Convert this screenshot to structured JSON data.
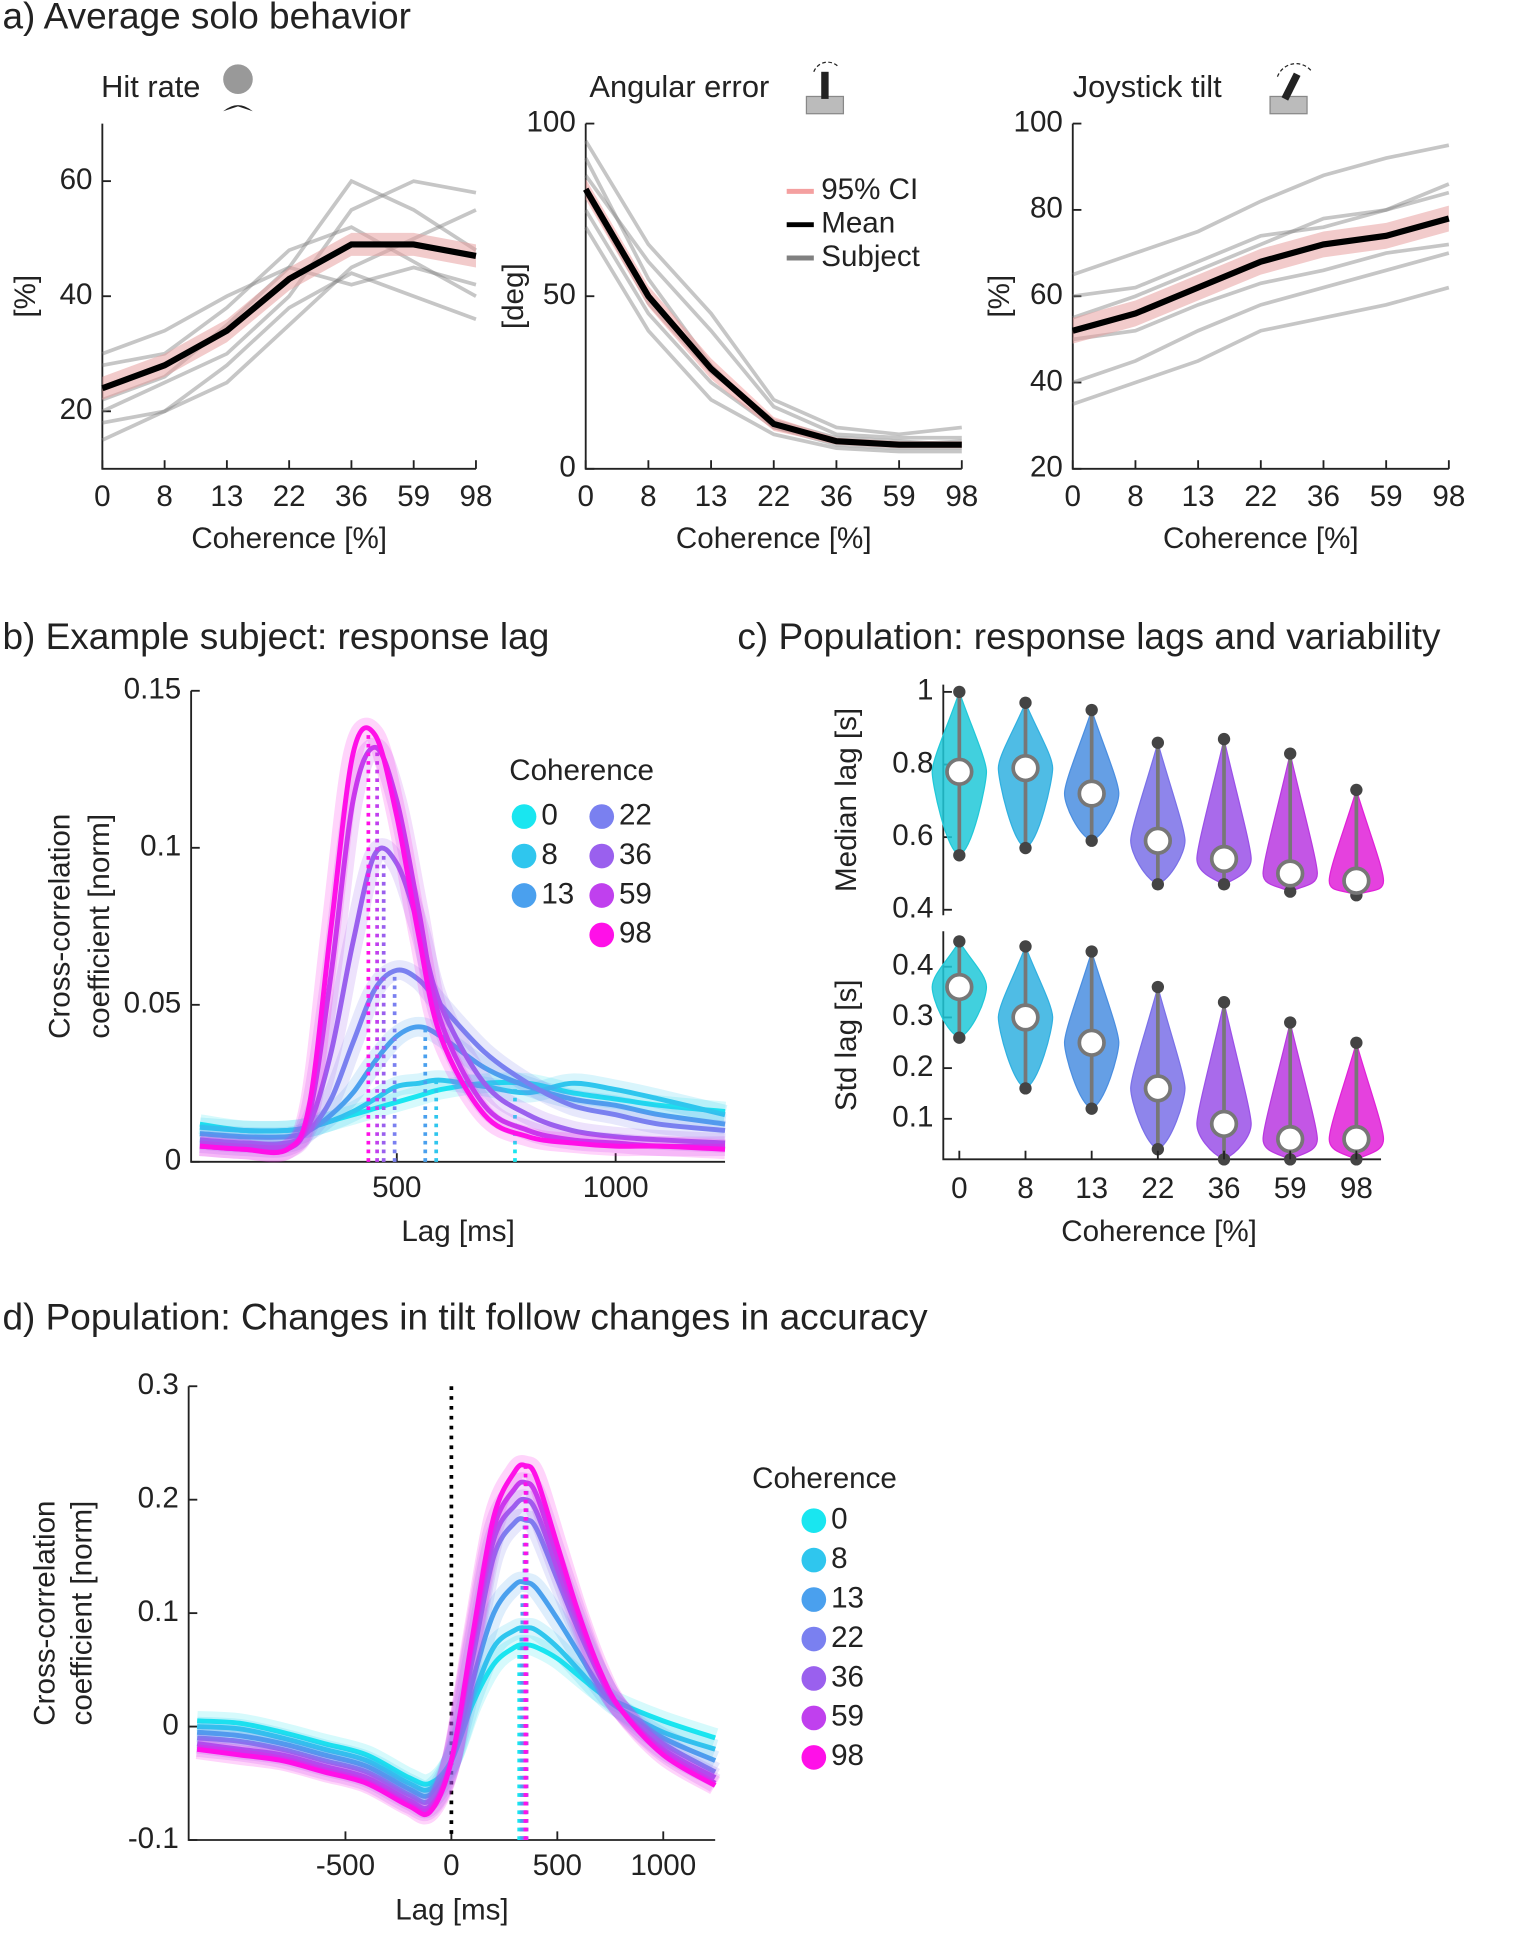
{
  "headings": [
    "a) Average solo behavior",
    "b) Example subject: response lag",
    "c) Population: response lags and variability",
    "d) Population: Changes in tilt follow changes in accuracy"
  ],
  "chart_data": [
    {
      "type": "line",
      "title": "Hit rate",
      "categories": [
        "0",
        "8",
        "13",
        "22",
        "36",
        "59",
        "98"
      ],
      "xlabel": "Coherence [%]",
      "ylabel": "[%]",
      "ylim": [
        10,
        70
      ],
      "yticks": [
        20,
        40,
        60
      ],
      "series": [
        {
          "color": "#e8a0a0",
          "lower": [
            22,
            26,
            32,
            41,
            47,
            47,
            45
          ],
          "upper": [
            26,
            30,
            36,
            45,
            51,
            51,
            49
          ]
        },
        {
          "color": "#000000",
          "values": [
            24,
            28,
            34,
            43,
            49,
            49,
            47
          ]
        },
        {
          "color": "#808080",
          "lines": [
            [
              20,
              25,
              30,
              40,
              55,
              60,
              58
            ],
            [
              28,
              30,
              38,
              48,
              52,
              46,
              40
            ],
            [
              18,
              20,
              25,
              35,
              45,
              50,
              55
            ],
            [
              22,
              26,
              35,
              45,
              60,
              55,
              48
            ],
            [
              30,
              34,
              40,
              45,
              42,
              45,
              42
            ],
            [
              15,
              20,
              28,
              38,
              44,
              40,
              36
            ]
          ]
        }
      ]
    },
    {
      "type": "line",
      "title": "Angular error",
      "categories": [
        "0",
        "8",
        "13",
        "22",
        "36",
        "59",
        "98"
      ],
      "xlabel": "Coherence [%]",
      "ylabel": "[deg]",
      "ylim": [
        0,
        100
      ],
      "yticks": [
        0,
        50,
        100
      ],
      "legend": true,
      "series": [
        {
          "name": "95% CI",
          "color": "#f4a0a0",
          "lower": [
            78,
            47,
            26,
            11,
            7,
            6,
            6
          ],
          "upper": [
            84,
            53,
            32,
            15,
            9,
            8,
            8
          ]
        },
        {
          "name": "Mean",
          "color": "#000000",
          "values": [
            81,
            50,
            29,
            13,
            8,
            7,
            7
          ]
        },
        {
          "name": "Subject",
          "color": "#808080",
          "lines": [
            [
              90,
              55,
              30,
              12,
              8,
              7,
              8
            ],
            [
              75,
              45,
              25,
              12,
              7,
              6,
              6
            ],
            [
              85,
              60,
              40,
              18,
              10,
              9,
              9
            ],
            [
              70,
              40,
              20,
              10,
              6,
              5,
              5
            ],
            [
              95,
              65,
              45,
              20,
              12,
              10,
              12
            ],
            [
              80,
              48,
              28,
              14,
              9,
              8,
              7
            ]
          ]
        }
      ]
    },
    {
      "type": "line",
      "title": "Joystick tilt",
      "categories": [
        "0",
        "8",
        "13",
        "22",
        "36",
        "59",
        "98"
      ],
      "xlabel": "Coherence [%]",
      "ylabel": "[%]",
      "ylim": [
        20,
        100
      ],
      "yticks": [
        20,
        40,
        60,
        80,
        100
      ],
      "series": [
        {
          "color": "#e8a0a0",
          "lower": [
            49,
            53,
            59,
            65,
            69,
            71,
            75
          ],
          "upper": [
            55,
            59,
            65,
            71,
            75,
            77,
            81
          ]
        },
        {
          "color": "#000000",
          "values": [
            52,
            56,
            62,
            68,
            72,
            74,
            78
          ]
        },
        {
          "color": "#808080",
          "lines": [
            [
              40,
              45,
              52,
              58,
              62,
              66,
              70
            ],
            [
              65,
              70,
              75,
              82,
              88,
              92,
              95
            ],
            [
              50,
              52,
              58,
              63,
              66,
              70,
              72
            ],
            [
              55,
              60,
              66,
              72,
              78,
              80,
              84
            ],
            [
              35,
              40,
              45,
              52,
              55,
              58,
              62
            ],
            [
              60,
              62,
              68,
              74,
              76,
              80,
              86
            ]
          ]
        }
      ]
    },
    {
      "type": "line",
      "xlabel": "Lag [ms]",
      "ylabel": [
        "Cross-correlation",
        "coefficient [norm]"
      ],
      "legend_title": "Coherence",
      "xlim": [
        30,
        1250
      ],
      "xticks": [
        500,
        1000
      ],
      "ylim": [
        0,
        0.15
      ],
      "yticks": [
        0,
        0.05,
        0.1,
        0.15
      ],
      "x": [
        50,
        150,
        250,
        300,
        350,
        400,
        450,
        500,
        550,
        600,
        700,
        800,
        900,
        1000,
        1100,
        1250
      ],
      "series": [
        {
          "name": "0",
          "color": "#19e6f0",
          "peak_lag": 770,
          "values": [
            0.012,
            0.01,
            0.01,
            0.011,
            0.013,
            0.015,
            0.017,
            0.019,
            0.021,
            0.023,
            0.025,
            0.025,
            0.022,
            0.02,
            0.018,
            0.016
          ]
        },
        {
          "name": "8",
          "color": "#2fc6ee",
          "peak_lag": 590,
          "values": [
            0.011,
            0.01,
            0.01,
            0.011,
            0.013,
            0.016,
            0.02,
            0.024,
            0.025,
            0.026,
            0.024,
            0.022,
            0.025,
            0.023,
            0.02,
            0.015
          ]
        },
        {
          "name": "13",
          "color": "#4aa0ee",
          "peak_lag": 565,
          "values": [
            0.009,
            0.008,
            0.008,
            0.01,
            0.015,
            0.022,
            0.032,
            0.04,
            0.043,
            0.04,
            0.03,
            0.024,
            0.02,
            0.018,
            0.015,
            0.012
          ]
        },
        {
          "name": "22",
          "color": "#7a80f0",
          "peak_lag": 495,
          "values": [
            0.007,
            0.006,
            0.006,
            0.01,
            0.02,
            0.038,
            0.055,
            0.061,
            0.058,
            0.05,
            0.035,
            0.025,
            0.018,
            0.015,
            0.012,
            0.01
          ]
        },
        {
          "name": "36",
          "color": "#9a60ee",
          "peak_lag": 470,
          "values": [
            0.006,
            0.005,
            0.005,
            0.012,
            0.035,
            0.07,
            0.098,
            0.095,
            0.075,
            0.05,
            0.025,
            0.015,
            0.01,
            0.008,
            0.007,
            0.006
          ]
        },
        {
          "name": "59",
          "color": "#c040ee",
          "peak_lag": 455,
          "values": [
            0.005,
            0.004,
            0.004,
            0.015,
            0.06,
            0.115,
            0.132,
            0.115,
            0.08,
            0.045,
            0.018,
            0.01,
            0.007,
            0.006,
            0.005,
            0.005
          ]
        },
        {
          "name": "98",
          "color": "#ff10e8",
          "peak_lag": 435,
          "values": [
            0.005,
            0.004,
            0.004,
            0.018,
            0.075,
            0.13,
            0.136,
            0.11,
            0.072,
            0.04,
            0.015,
            0.008,
            0.006,
            0.005,
            0.005,
            0.004
          ]
        }
      ]
    },
    {
      "type": "violin",
      "categories": [
        "0",
        "8",
        "13",
        "22",
        "36",
        "59",
        "98"
      ],
      "xlabel": "Coherence [%]",
      "colors": [
        "#20c8d8",
        "#30b0e0",
        "#4a8ee0",
        "#7a70e8",
        "#9a50e8",
        "#b838e0",
        "#e020d8"
      ],
      "subplots": [
        {
          "ylabel": "Median lag [s]",
          "ylim": [
            0.385,
            1.02
          ],
          "yticks": [
            0.4,
            0.6,
            0.8,
            1
          ],
          "median": [
            0.78,
            0.79,
            0.72,
            0.59,
            0.54,
            0.5,
            0.48
          ],
          "min": [
            0.55,
            0.57,
            0.59,
            0.47,
            0.47,
            0.45,
            0.44
          ],
          "max": [
            1.0,
            0.97,
            0.95,
            0.86,
            0.87,
            0.83,
            0.73
          ]
        },
        {
          "ylabel": "Std lag [s]",
          "ylim": [
            0.02,
            0.47
          ],
          "yticks": [
            0.1,
            0.2,
            0.3,
            0.4
          ],
          "median": [
            0.36,
            0.3,
            0.25,
            0.16,
            0.09,
            0.06,
            0.06
          ],
          "min": [
            0.26,
            0.16,
            0.12,
            0.04,
            0.02,
            0.02,
            0.02
          ],
          "max": [
            0.45,
            0.44,
            0.43,
            0.36,
            0.33,
            0.29,
            0.25
          ]
        }
      ]
    },
    {
      "type": "line",
      "xlabel": "Lag [ms]",
      "ylabel": [
        "Cross-correlation",
        "coefficient [norm]"
      ],
      "legend_title": "Coherence",
      "xlim": [
        -1240,
        1245
      ],
      "xticks": [
        -500,
        0,
        500,
        1000
      ],
      "ylim": [
        -0.1,
        0.3
      ],
      "yticks": [
        -0.1,
        0,
        0.1,
        0.2,
        0.3
      ],
      "reference_x": 0,
      "x": [
        -1200,
        -1000,
        -800,
        -600,
        -400,
        -200,
        -100,
        0,
        100,
        200,
        300,
        350,
        400,
        500,
        600,
        700,
        800,
        1000,
        1245
      ],
      "series": [
        {
          "name": "0",
          "color": "#19e6f0",
          "peak_lag": 320,
          "values": [
            0.005,
            0.003,
            -0.005,
            -0.015,
            -0.025,
            -0.045,
            -0.05,
            -0.03,
            0.02,
            0.055,
            0.07,
            0.072,
            0.07,
            0.06,
            0.045,
            0.03,
            0.02,
            0.005,
            -0.01
          ]
        },
        {
          "name": "8",
          "color": "#2fc6ee",
          "peak_lag": 330,
          "values": [
            0.0,
            -0.002,
            -0.01,
            -0.02,
            -0.03,
            -0.05,
            -0.055,
            -0.03,
            0.025,
            0.07,
            0.085,
            0.087,
            0.085,
            0.07,
            0.05,
            0.03,
            0.015,
            -0.005,
            -0.02
          ]
        },
        {
          "name": "13",
          "color": "#4aa0ee",
          "peak_lag": 335,
          "values": [
            -0.005,
            -0.008,
            -0.015,
            -0.025,
            -0.035,
            -0.055,
            -0.06,
            -0.03,
            0.04,
            0.1,
            0.125,
            0.127,
            0.122,
            0.095,
            0.065,
            0.035,
            0.015,
            -0.01,
            -0.03
          ]
        },
        {
          "name": "22",
          "color": "#7a80f0",
          "peak_lag": 345,
          "values": [
            -0.01,
            -0.013,
            -0.02,
            -0.03,
            -0.04,
            -0.06,
            -0.065,
            -0.03,
            0.06,
            0.15,
            0.18,
            0.182,
            0.175,
            0.13,
            0.085,
            0.045,
            0.015,
            -0.015,
            -0.04
          ]
        },
        {
          "name": "36",
          "color": "#9a60ee",
          "peak_lag": 350,
          "values": [
            -0.015,
            -0.02,
            -0.025,
            -0.035,
            -0.045,
            -0.065,
            -0.07,
            -0.03,
            0.07,
            0.165,
            0.195,
            0.2,
            0.19,
            0.14,
            0.09,
            0.045,
            0.015,
            -0.02,
            -0.045
          ]
        },
        {
          "name": "59",
          "color": "#c040ee",
          "peak_lag": 355,
          "values": [
            -0.018,
            -0.022,
            -0.028,
            -0.038,
            -0.048,
            -0.068,
            -0.072,
            -0.03,
            0.075,
            0.175,
            0.21,
            0.215,
            0.205,
            0.15,
            0.095,
            0.045,
            0.015,
            -0.022,
            -0.05
          ]
        },
        {
          "name": "98",
          "color": "#ff10e8",
          "peak_lag": 350,
          "values": [
            -0.02,
            -0.025,
            -0.03,
            -0.04,
            -0.05,
            -0.07,
            -0.075,
            -0.03,
            0.08,
            0.185,
            0.225,
            0.23,
            0.22,
            0.16,
            0.1,
            0.05,
            0.015,
            -0.025,
            -0.052
          ]
        }
      ]
    }
  ]
}
